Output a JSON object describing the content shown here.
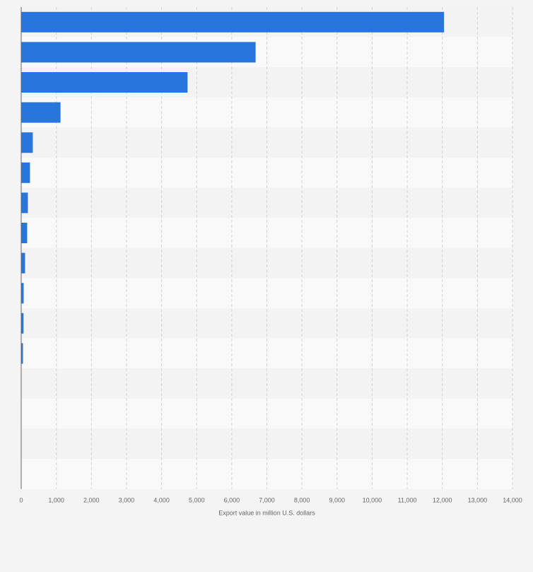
{
  "chart_data": {
    "type": "bar",
    "orientation": "horizontal",
    "categories": [
      "",
      "",
      "",
      "",
      "",
      "",
      "",
      "",
      "",
      "",
      "",
      "",
      "",
      "",
      "",
      ""
    ],
    "values": [
      12050,
      6680,
      4740,
      1120,
      330,
      250,
      190,
      170,
      110,
      70,
      65,
      50,
      0,
      0,
      0,
      0
    ],
    "xlabel": "Export value in million U.S. dollars",
    "ylabel": "",
    "xlim": [
      0,
      14000
    ],
    "x_ticks": [
      0,
      1000,
      2000,
      3000,
      4000,
      5000,
      6000,
      7000,
      8000,
      9000,
      10000,
      11000,
      12000,
      13000,
      14000
    ],
    "x_tick_labels": [
      "0",
      "1,000",
      "2,000",
      "3,000",
      "4,000",
      "5,000",
      "6,000",
      "7,000",
      "8,000",
      "9,000",
      "10,000",
      "11,000",
      "12,000",
      "13,000",
      "14,000"
    ],
    "grid": true,
    "colors": {
      "bar": "#2876dd",
      "band_light": "#f9f9f9",
      "band_dark": "#f3f3f3",
      "grid": "#d4d4d4",
      "axis": "#666666"
    }
  }
}
